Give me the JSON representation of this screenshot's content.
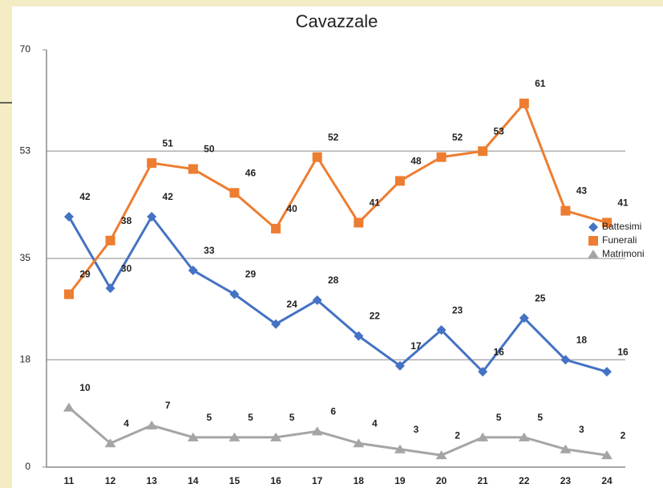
{
  "chart_data": {
    "type": "line",
    "title": "Cavazzale",
    "categories": [
      "11",
      "12",
      "13",
      "14",
      "15",
      "16",
      "17",
      "18",
      "19",
      "20",
      "21",
      "22",
      "23",
      "24"
    ],
    "series": [
      {
        "name": "Battesimi",
        "color": "#4472c4",
        "marker": "diamond",
        "values": [
          42,
          30,
          42,
          33,
          29,
          24,
          28,
          22,
          17,
          23,
          16,
          25,
          18,
          16
        ]
      },
      {
        "name": "Funerali",
        "color": "#ed7d31",
        "marker": "square",
        "values": [
          29,
          38,
          51,
          50,
          46,
          40,
          52,
          41,
          48,
          52,
          53,
          61,
          43,
          41
        ]
      },
      {
        "name": "Matrimoni",
        "color": "#a5a5a5",
        "marker": "triangle",
        "values": [
          10,
          4,
          7,
          5,
          5,
          5,
          6,
          4,
          3,
          2,
          5,
          5,
          3,
          2
        ]
      }
    ],
    "ylim": [
      0,
      70
    ],
    "yticks": [
      0,
      18,
      35,
      53,
      70
    ],
    "grid": true,
    "legend": "right"
  }
}
